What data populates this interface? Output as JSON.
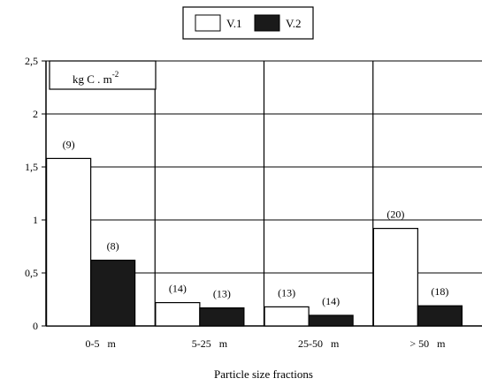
{
  "chart_data": {
    "type": "bar",
    "categories": [
      "0-5   m",
      "5-25   m",
      "25-50   m",
      "> 50   m"
    ],
    "series": [
      {
        "name": "V.1",
        "values": [
          1.58,
          0.22,
          0.18,
          0.92
        ],
        "labels": [
          "(9)",
          "(14)",
          "(13)",
          "(20)"
        ],
        "fill": "#ffffff"
      },
      {
        "name": "V.2",
        "values": [
          0.62,
          0.17,
          0.1,
          0.19
        ],
        "labels": [
          "(8)",
          "(13)",
          "(14)",
          "(18)"
        ],
        "fill": "#1a1a1a"
      }
    ],
    "ylim": [
      0,
      2.5
    ],
    "yticks": [
      0,
      0.5,
      1,
      1.5,
      2,
      2.5
    ],
    "ytick_labels": [
      "0",
      "0,5",
      "1",
      "1,5",
      "2",
      "2,5"
    ],
    "unit_label": "kg C . m",
    "unit_exponent": "-2",
    "xlabel": "Particle size fractions",
    "ylabel": "",
    "title": "",
    "grid": "horizontal lines",
    "legend": "top-center"
  }
}
